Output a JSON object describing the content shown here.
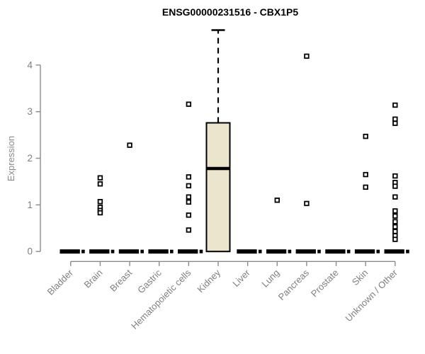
{
  "title": "ENSG00000231516 - CBX1P5",
  "chart_data": {
    "type": "boxplot",
    "title": "ENSG00000231516 - CBX1P5",
    "xlabel": "",
    "ylabel": "Expression",
    "yticks": [
      0,
      1,
      2,
      3,
      4
    ],
    "ylim": [
      0,
      4.85
    ],
    "grid": false,
    "legend": false,
    "categories": [
      "Bladder",
      "Brain",
      "Breast",
      "Gastric",
      "Hematopoietic cells",
      "Kidney",
      "Liver",
      "Lung",
      "Pancreas",
      "Prostate",
      "Skin",
      "Unknown / Other"
    ],
    "boxes": [
      {
        "category": "Bladder",
        "low": 0,
        "q1": 0,
        "median": 0,
        "q3": 0,
        "high": 0,
        "outliers": []
      },
      {
        "category": "Brain",
        "low": 0,
        "q1": 0,
        "median": 0,
        "q3": 0,
        "high": 0,
        "outliers": [
          1.58,
          1.45,
          1.07,
          0.95,
          0.88,
          0.83
        ]
      },
      {
        "category": "Breast",
        "low": 0,
        "q1": 0,
        "median": 0,
        "q3": 0,
        "high": 0,
        "outliers": [
          2.28
        ]
      },
      {
        "category": "Gastric",
        "low": 0,
        "q1": 0,
        "median": 0,
        "q3": 0,
        "high": 0,
        "outliers": []
      },
      {
        "category": "Hematopoietic cells",
        "low": 0,
        "q1": 0,
        "median": 0,
        "q3": 0,
        "high": 0,
        "outliers": [
          3.16,
          1.6,
          1.41,
          1.17,
          1.06,
          0.78,
          0.46
        ]
      },
      {
        "category": "Kidney",
        "low": 0,
        "q1": 0,
        "median": 1.78,
        "q3": 2.76,
        "high": 4.75,
        "outliers": []
      },
      {
        "category": "Liver",
        "low": 0,
        "q1": 0,
        "median": 0,
        "q3": 0,
        "high": 0,
        "outliers": []
      },
      {
        "category": "Lung",
        "low": 0,
        "q1": 0,
        "median": 0,
        "q3": 0,
        "high": 0,
        "outliers": [
          1.1
        ]
      },
      {
        "category": "Pancreas",
        "low": 0,
        "q1": 0,
        "median": 0,
        "q3": 0,
        "high": 0,
        "outliers": [
          4.19,
          1.03
        ]
      },
      {
        "category": "Prostate",
        "low": 0,
        "q1": 0,
        "median": 0,
        "q3": 0,
        "high": 0,
        "outliers": []
      },
      {
        "category": "Skin",
        "low": 0,
        "q1": 0,
        "median": 0,
        "q3": 0,
        "high": 0,
        "outliers": [
          2.47,
          1.65,
          1.38
        ]
      },
      {
        "category": "Unknown / Other",
        "low": 0,
        "q1": 0,
        "median": 0,
        "q3": 0,
        "high": 0,
        "outliers": [
          3.14,
          2.84,
          2.75,
          1.62,
          1.48,
          1.4,
          1.17,
          0.87,
          0.76,
          0.64,
          0.53,
          0.43,
          0.34,
          0.26
        ]
      }
    ],
    "style": {
      "box_fill": "#ece5cd",
      "box_stroke": "#000000",
      "marker": "open-square",
      "marker_fill": "#ffffff",
      "marker_stroke": "#000000",
      "axis_color": "#8a8a8a",
      "tick_label_color": "#7f7f7f",
      "title_color": "#000000"
    }
  }
}
